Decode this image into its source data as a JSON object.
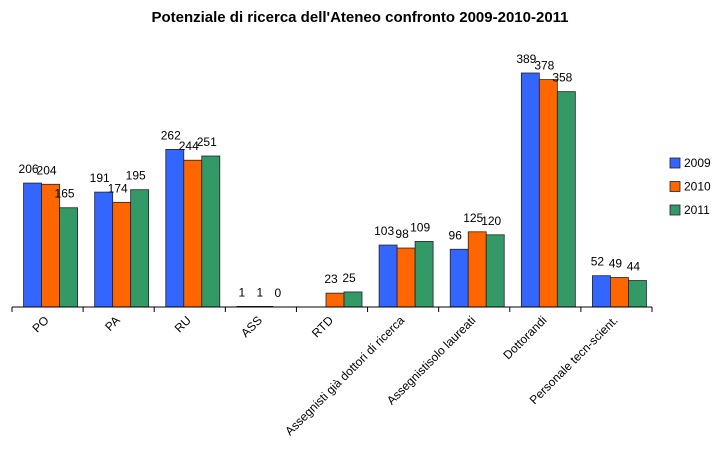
{
  "chart_data": {
    "type": "bar",
    "title": "Potenziale di ricerca dell'Ateneo confronto 2009-2010-2011",
    "categories": [
      "PO",
      "PA",
      "RU",
      "ASS",
      "RTD",
      "Assegnisti  già dottori di ricerca",
      "Assegnistisolo laureati",
      "Dottorandi",
      "Personale tecn-scient."
    ],
    "series": [
      {
        "name": "2009",
        "color": "#3366ff",
        "values": [
          206,
          191,
          262,
          1,
          null,
          103,
          96,
          389,
          52
        ]
      },
      {
        "name": "2010",
        "color": "#ff6600",
        "values": [
          204,
          174,
          244,
          1,
          23,
          98,
          125,
          378,
          49
        ]
      },
      {
        "name": "2011",
        "color": "#339966",
        "values": [
          165,
          195,
          251,
          0,
          25,
          109,
          120,
          358,
          44
        ]
      }
    ],
    "legend": "right"
  }
}
